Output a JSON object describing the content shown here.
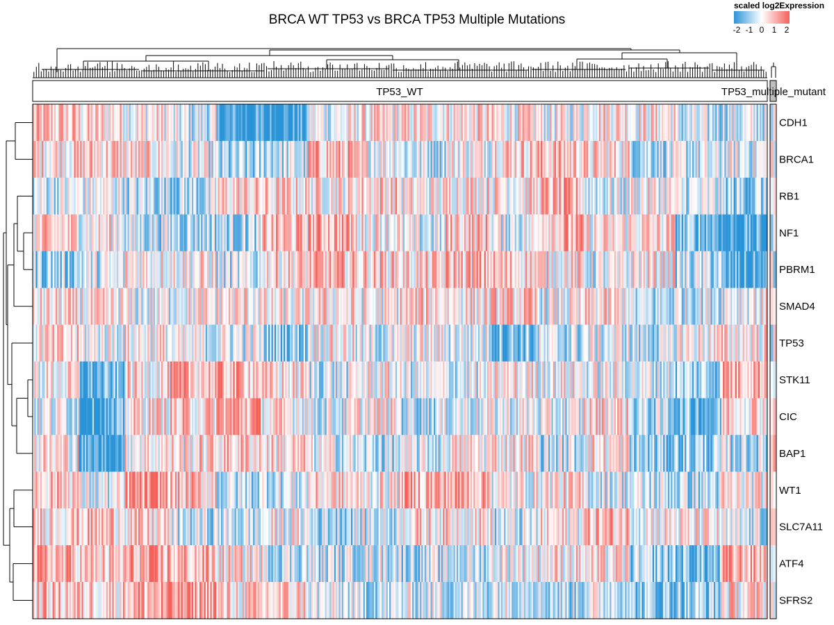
{
  "chart_data": {
    "type": "heatmap",
    "title": "BRCA WT TP53 vs BRCA TP53 Multiple Mutations",
    "legend": {
      "title": "scaled log2Expression",
      "ticks": [
        "-2",
        "-1",
        "0",
        "1",
        "2"
      ],
      "range": [
        -2,
        2
      ],
      "colors": {
        "low": "#2b94d8",
        "mid": "#ffffff",
        "high": "#f4605a"
      },
      "placement": "top-right"
    },
    "column_annotation": {
      "groups": [
        {
          "label": "TP53_WT",
          "fill": "#ffffff"
        },
        {
          "label": "TP53_multiple_mutant",
          "fill": "#bebebe"
        }
      ]
    },
    "genes": [
      "CDH1",
      "BRCA1",
      "RB1",
      "NF1",
      "PBRM1",
      "SMAD4",
      "TP53",
      "STK11",
      "CIC",
      "BAP1",
      "WT1",
      "SLC7A11",
      "ATF4",
      "SFRS2"
    ],
    "column_segments": [
      {
        "group": "TP53_WT",
        "values": [
          0.6,
          0.5,
          -0.3,
          0.4,
          -0.8,
          0.2,
          0.3,
          0.1,
          -0.2,
          0.3,
          0.8,
          0.6,
          0.9,
          0.7
        ]
      },
      {
        "group": "TP53_WT",
        "values": [
          0.4,
          0.6,
          -0.1,
          0.2,
          -0.4,
          0.1,
          0.0,
          -1.6,
          -1.8,
          -1.9,
          -0.3,
          0.7,
          0.5,
          0.6
        ]
      },
      {
        "group": "TP53_WT",
        "values": [
          0.2,
          0.3,
          -0.6,
          -0.5,
          0.3,
          -0.2,
          0.2,
          0.3,
          0.4,
          0.3,
          1.2,
          0.4,
          0.9,
          1.0
        ]
      },
      {
        "group": "TP53_WT",
        "values": [
          -0.4,
          -0.3,
          -0.7,
          -0.6,
          0.2,
          0.1,
          -0.3,
          0.8,
          0.5,
          0.4,
          0.6,
          -0.5,
          0.8,
          1.3
        ]
      },
      {
        "group": "TP53_WT",
        "values": [
          -1.9,
          -1.0,
          0.5,
          -0.7,
          -0.5,
          0.3,
          -0.2,
          0.9,
          1.1,
          0.6,
          -0.6,
          -0.5,
          0.3,
          0.4
        ]
      },
      {
        "group": "TP53_WT",
        "values": [
          -2.0,
          -0.5,
          0.4,
          0.7,
          0.5,
          0.0,
          -0.9,
          0.3,
          0.2,
          0.4,
          -0.3,
          0.0,
          -0.4,
          0.5
        ]
      },
      {
        "group": "TP53_WT",
        "values": [
          -0.1,
          0.8,
          0.3,
          1.0,
          0.7,
          0.3,
          0.2,
          -0.4,
          -0.3,
          -0.2,
          0.4,
          -0.6,
          -0.5,
          -0.3
        ]
      },
      {
        "group": "TP53_WT",
        "values": [
          0.2,
          0.2,
          0.6,
          0.3,
          0.6,
          0.0,
          -0.4,
          0.1,
          0.2,
          -0.6,
          0.2,
          -0.4,
          -0.3,
          -0.6
        ]
      },
      {
        "group": "TP53_WT",
        "values": [
          0.3,
          -0.4,
          0.1,
          -0.4,
          0.4,
          0.5,
          0.0,
          -0.3,
          -0.5,
          -0.4,
          1.0,
          0.4,
          -0.6,
          -0.3
        ]
      },
      {
        "group": "TP53_WT",
        "values": [
          0.4,
          0.1,
          0.5,
          0.7,
          0.8,
          0.3,
          -0.2,
          -0.3,
          -0.2,
          0.2,
          1.1,
          0.4,
          -0.5,
          -0.5
        ]
      },
      {
        "group": "TP53_WT",
        "values": [
          0.2,
          0.7,
          0.3,
          -0.2,
          0.6,
          0.5,
          -1.2,
          0.2,
          -0.1,
          0.4,
          0.1,
          -0.5,
          0.1,
          -0.1
        ]
      },
      {
        "group": "TP53_WT",
        "values": [
          0.0,
          0.8,
          0.7,
          0.9,
          0.3,
          -0.1,
          -0.6,
          0.1,
          -0.3,
          -0.5,
          0.3,
          0.2,
          0.3,
          -0.6
        ]
      },
      {
        "group": "TP53_WT",
        "values": [
          0.5,
          0.4,
          -0.3,
          0.2,
          -0.3,
          0.3,
          -0.2,
          -0.1,
          0.5,
          0.3,
          -0.2,
          0.8,
          0.2,
          -0.2
        ]
      },
      {
        "group": "TP53_WT",
        "values": [
          0.3,
          -0.5,
          0.1,
          0.4,
          0.2,
          -0.7,
          -0.6,
          -0.3,
          -0.7,
          -1.0,
          -0.5,
          0.2,
          -0.9,
          -1.1
        ]
      },
      {
        "group": "TP53_WT",
        "values": [
          -0.6,
          -0.5,
          -0.4,
          -1.2,
          -0.6,
          -0.3,
          0.2,
          -0.8,
          -1.3,
          -0.9,
          -0.6,
          0.1,
          -1.3,
          -0.9
        ]
      },
      {
        "group": "TP53_WT",
        "values": [
          -0.4,
          -0.2,
          -0.9,
          -1.9,
          -1.8,
          0.1,
          0.3,
          1.1,
          0.6,
          -0.6,
          0.1,
          -0.5,
          1.0,
          0.4
        ]
      },
      {
        "group": "TP53_multiple_mutant",
        "values": [
          0.1,
          0.5,
          -0.2,
          -0.8,
          -0.3,
          0.2,
          0.0,
          0.3,
          0.2,
          0.1,
          0.0,
          0.0,
          0.2,
          0.2
        ]
      }
    ],
    "row_dendrogram_order": "left-of-heatmap",
    "column_dendrogram_order": "above-annotation"
  }
}
